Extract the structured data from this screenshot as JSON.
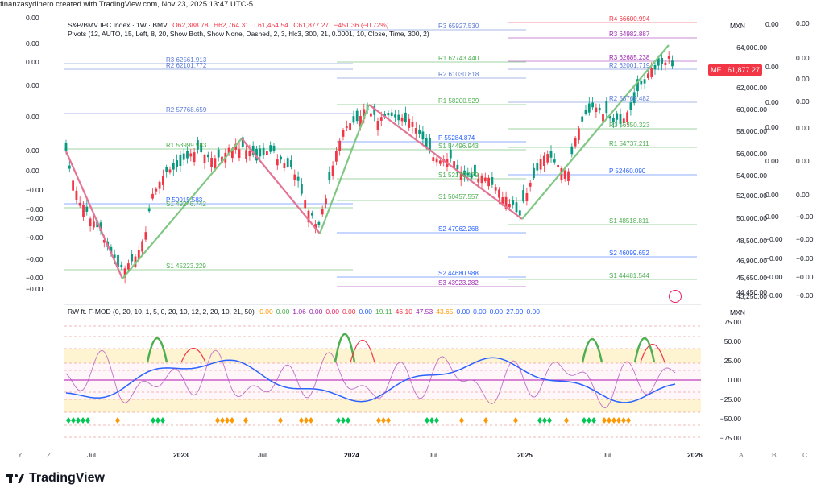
{
  "header": {
    "created_by": "finanzasydinero created with TradingView.com, Nov 23, 2025 13:47 UTC-5"
  },
  "symbol": {
    "name": "S&P/BMV IPC Index · 1W · BMV",
    "open": "O62,388.78",
    "high": "H62,764.31",
    "low": "L61,454.54",
    "close": "C61,877.27",
    "change": "−451.36 (−0.72%)"
  },
  "pivots_legend": "Pivots (12, AUTO, 15, Left, 8, 20, Show Both, Show None, Dashed, 2, 3, hlc3, 300, 21, 0.0001, 10, Close, Time, 300, 2)",
  "price_scale": {
    "currency": "MXN",
    "ticks": [
      "64,000.00",
      "62,000.00",
      "60,000.00",
      "58,000.00",
      "56,000.00",
      "54,000.00",
      "52,000.00",
      "50,000.00",
      "48,500.00",
      "46,900.00",
      "45,650.00",
      "44,450.00",
      "43,250.00"
    ],
    "last_price_tag": "61,877.27",
    "last_price_prefix": "ME"
  },
  "left_scale": [
    "0.00",
    "0.00",
    "0.00",
    "0.00",
    "0.00",
    "0.00",
    "0.00",
    "−0.00",
    "−0.00",
    "−0.00",
    "−0.00",
    "−0.00",
    "−0.00",
    "−0.00"
  ],
  "overlay_scale_a": [
    "0.00",
    "0.00",
    "0.00",
    "0.00",
    "0.00",
    "0.00",
    "0.00",
    "−0.00",
    "−0.00",
    "−0.00",
    "−0.00",
    "−0.00",
    "−0.00"
  ],
  "overlay_scale_b": [
    "0.00",
    "0.00",
    "0.00",
    "0.00",
    "0.00",
    "0.00",
    "0.00",
    "−0.00",
    "−0.00",
    "−0.00",
    "−0.00",
    "−0.00",
    "−0.00"
  ],
  "pivot_labels": [
    {
      "t": "R3  62561.913",
      "c": "#5b7bd5"
    },
    {
      "t": "R2  62101.772",
      "c": "#5b7bd5"
    },
    {
      "t": "R2  57768.659",
      "c": "#5b7bd5"
    },
    {
      "t": "R1  53999.983",
      "c": "#4caf50"
    },
    {
      "t": "P   50015.583",
      "c": "#2962ff"
    },
    {
      "t": "S1  49246.742",
      "c": "#4caf50"
    },
    {
      "t": "S1  45223.229",
      "c": "#4caf50"
    },
    {
      "t": "R3  65927.530",
      "c": "#5b7bd5"
    },
    {
      "t": "R1  62743.440",
      "c": "#4caf50"
    },
    {
      "t": "R2  61030.818",
      "c": "#5b7bd5"
    },
    {
      "t": "R1  58200.529",
      "c": "#4caf50"
    },
    {
      "t": "P   55284.874",
      "c": "#2962ff"
    },
    {
      "t": "S1  54496.943",
      "c": "#4caf50"
    },
    {
      "t": "S1  52170.179",
      "c": "#4caf50"
    },
    {
      "t": "S1  50457.557",
      "c": "#4caf50"
    },
    {
      "t": "S2  47962.268",
      "c": "#2962ff"
    },
    {
      "t": "S2  44680.988",
      "c": "#2962ff"
    },
    {
      "t": "S3  43923.282",
      "c": "#9c27b0"
    },
    {
      "t": "R4  66600.994",
      "c": "#f23645"
    },
    {
      "t": "R3  64982.887",
      "c": "#9c27b0"
    },
    {
      "t": "R3  62685.238",
      "c": "#9c27b0"
    },
    {
      "t": "R2  62001.719",
      "c": "#5b7bd5"
    },
    {
      "t": "R2  58769.482",
      "c": "#5b7bd5"
    },
    {
      "t": "R1  56350.323",
      "c": "#4caf50"
    },
    {
      "t": "R1  54737.211",
      "c": "#4caf50"
    },
    {
      "t": "P   52460.090",
      "c": "#2962ff"
    },
    {
      "t": "S1  48518.811",
      "c": "#4caf50"
    },
    {
      "t": "S2  46099.652",
      "c": "#2962ff"
    },
    {
      "t": "S1  44481.544",
      "c": "#4caf50"
    }
  ],
  "indicator": {
    "title": "RW ft. F-MOD (0, 20, 10, 1, 5, 0, 20, 10, 12, 2, 20, 10, 21, 50)",
    "values": [
      {
        "v": "0.00",
        "c": "#ff9800"
      },
      {
        "v": "0.00",
        "c": "#4caf50"
      },
      {
        "v": "1.06",
        "c": "#9c27b0"
      },
      {
        "v": "0.00",
        "c": "#9c27b0"
      },
      {
        "v": "0.00",
        "c": "#e91e63"
      },
      {
        "v": "0.00",
        "c": "#f23645"
      },
      {
        "v": "0.00",
        "c": "#2962ff"
      },
      {
        "v": "19.11",
        "c": "#4caf50"
      },
      {
        "v": "46.10",
        "c": "#f23645"
      },
      {
        "v": "47.53",
        "c": "#9c27b0"
      },
      {
        "v": "43.65",
        "c": "#ff9800"
      },
      {
        "v": "0.00",
        "c": "#2962ff"
      },
      {
        "v": "0.00",
        "c": "#2962ff"
      },
      {
        "v": "0.00",
        "c": "#2962ff"
      },
      {
        "v": "27.99",
        "c": "#2962ff"
      },
      {
        "v": "0.00",
        "c": "#2962ff"
      }
    ],
    "currency": "MXN",
    "ticks": [
      "75.00",
      "50.00",
      "25.00",
      "0.00",
      "−25.00",
      "−50.00",
      "−75.00"
    ]
  },
  "time_axis": [
    {
      "label": "Jul",
      "bold": false
    },
    {
      "label": "2023",
      "bold": true
    },
    {
      "label": "Jul",
      "bold": false
    },
    {
      "label": "2024",
      "bold": true
    },
    {
      "label": "Jul",
      "bold": false
    },
    {
      "label": "2025",
      "bold": true
    },
    {
      "label": "Jul",
      "bold": false
    },
    {
      "label": "2026",
      "bold": true
    }
  ],
  "bottom_buttons": {
    "left": [
      "Y",
      "Z"
    ],
    "right": [
      "A",
      "B",
      "C"
    ]
  },
  "brand": "TradingView",
  "colors": {
    "up": "#089981",
    "down": "#f23645",
    "trend_up": "#81c784",
    "trend_down": "#e57393"
  }
}
